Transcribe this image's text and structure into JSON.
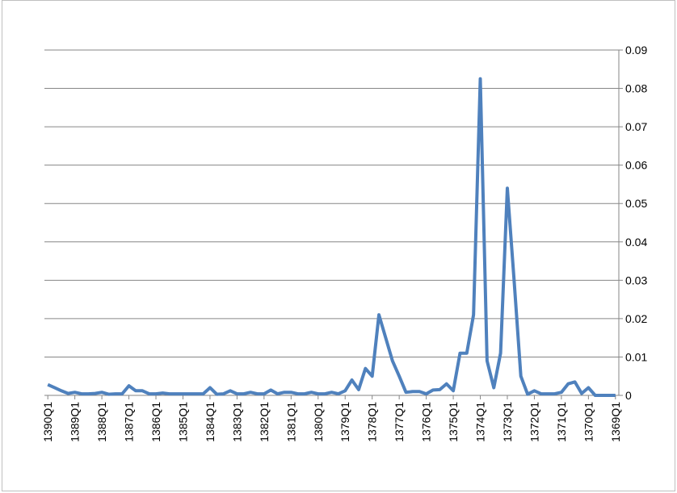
{
  "chart_data": {
    "type": "line",
    "categories": [
      "1390Q1",
      null,
      null,
      null,
      "1389Q1",
      null,
      null,
      null,
      "1388Q1",
      null,
      null,
      null,
      "1387Q1",
      null,
      null,
      null,
      "1386Q1",
      null,
      null,
      null,
      "1385Q1",
      null,
      null,
      null,
      "1384Q1",
      null,
      null,
      null,
      "1383Q1",
      null,
      null,
      null,
      "1382Q1",
      null,
      null,
      null,
      "1381Q1",
      null,
      null,
      null,
      "1380Q1",
      null,
      null,
      null,
      "1379Q1",
      null,
      null,
      null,
      "1378Q1",
      null,
      null,
      null,
      "1377Q1",
      null,
      null,
      null,
      "1376Q1",
      null,
      null,
      null,
      "1375Q1",
      null,
      null,
      null,
      "1374Q1",
      null,
      null,
      null,
      "1373Q1",
      null,
      null,
      null,
      "1372Q1",
      null,
      null,
      null,
      "1371Q1",
      null,
      null,
      null,
      "1370Q1",
      null,
      null,
      null,
      "1369Q1"
    ],
    "values": [
      0.0028,
      0.002,
      0.0012,
      0.0005,
      0.0008,
      0.0004,
      0.0004,
      0.0005,
      0.0008,
      0.0003,
      0.0004,
      0.0004,
      0.0025,
      0.0012,
      0.0012,
      0.0004,
      0.0004,
      0.0006,
      0.0004,
      0.0004,
      0.0004,
      0.0004,
      0.0004,
      0.0004,
      0.002,
      0.0003,
      0.0004,
      0.0012,
      0.0004,
      0.0004,
      0.0008,
      0.0004,
      0.0004,
      0.0014,
      0.0004,
      0.0008,
      0.0008,
      0.0004,
      0.0004,
      0.0008,
      0.0004,
      0.0004,
      0.0008,
      0.0004,
      0.0012,
      0.004,
      0.0015,
      0.007,
      0.005,
      0.021,
      0.015,
      0.009,
      0.005,
      0.0008,
      0.001,
      0.001,
      0.0004,
      0.0014,
      0.0015,
      0.003,
      0.0012,
      0.011,
      0.011,
      0.021,
      0.0825,
      0.009,
      0.002,
      0.011,
      0.054,
      0.03,
      0.005,
      0.0003,
      0.0012,
      0.0004,
      0.0004,
      0.0004,
      0.0008,
      0.003,
      0.0035,
      0.0005,
      0.002,
      0,
      0,
      0,
      0
    ],
    "color": "#4f81bd",
    "ylim": [
      0,
      0.09
    ],
    "yticks": [
      0,
      0.01,
      0.02,
      0.03,
      0.04,
      0.05,
      0.06,
      0.07,
      0.08,
      0.09
    ],
    "y_axis_side": "right",
    "grid": true
  }
}
